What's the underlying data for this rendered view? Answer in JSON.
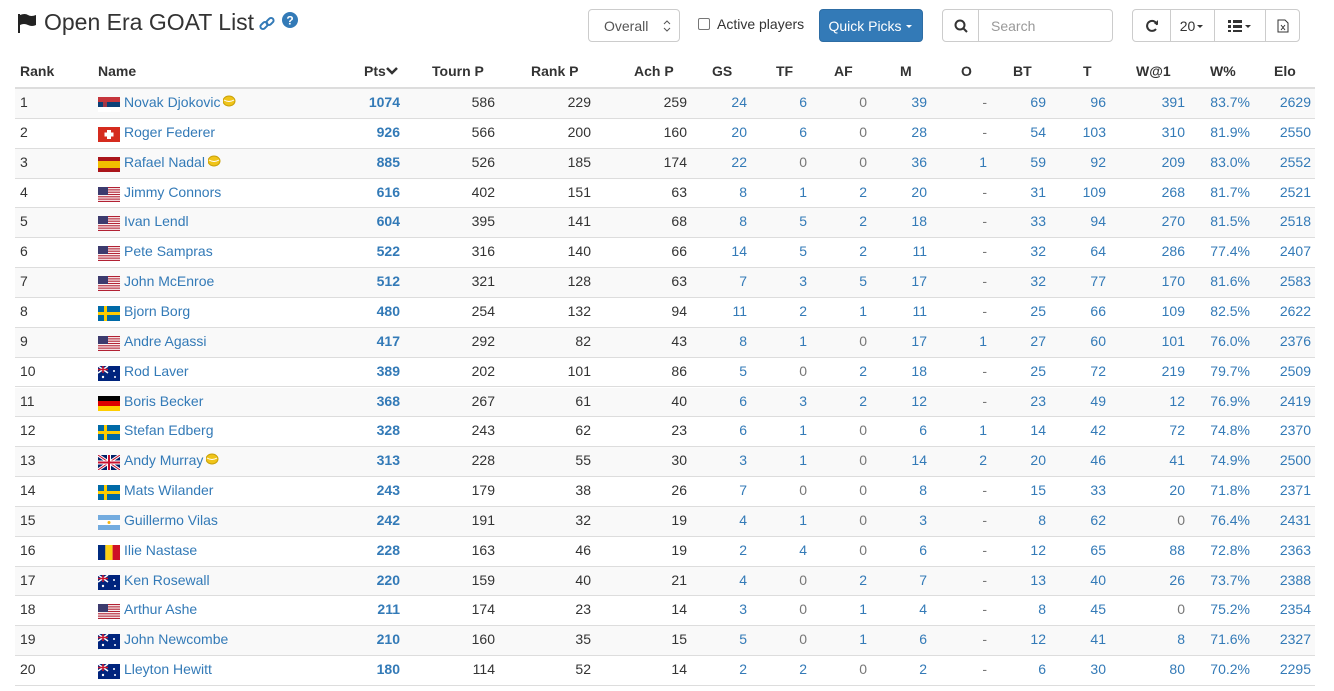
{
  "header": {
    "title": "Open Era GOAT List"
  },
  "toolbar": {
    "view": "Overall",
    "active_label": "Active players",
    "quick_picks": "Quick Picks",
    "search_placeholder": "Search",
    "page_size": "20"
  },
  "table": {
    "columns": [
      "Rank",
      "Name",
      "Pts",
      "Tourn P",
      "Rank P",
      "Ach P",
      "GS",
      "TF",
      "AF",
      "M",
      "O",
      "BT",
      "T",
      "W@1",
      "W%",
      "Elo"
    ],
    "rows": [
      [
        "1",
        "Novak Djokovic",
        "1074",
        "586",
        "229",
        "259",
        "24",
        "6",
        "0",
        "39",
        "-",
        "69",
        "96",
        "391",
        "83.7%",
        "2629"
      ],
      [
        "2",
        "Roger Federer",
        "926",
        "566",
        "200",
        "160",
        "20",
        "6",
        "0",
        "28",
        "-",
        "54",
        "103",
        "310",
        "81.9%",
        "2550"
      ],
      [
        "3",
        "Rafael Nadal",
        "885",
        "526",
        "185",
        "174",
        "22",
        "0",
        "0",
        "36",
        "1",
        "59",
        "92",
        "209",
        "83.0%",
        "2552"
      ],
      [
        "4",
        "Jimmy Connors",
        "616",
        "402",
        "151",
        "63",
        "8",
        "1",
        "2",
        "20",
        "-",
        "31",
        "109",
        "268",
        "81.7%",
        "2521"
      ],
      [
        "5",
        "Ivan Lendl",
        "604",
        "395",
        "141",
        "68",
        "8",
        "5",
        "2",
        "18",
        "-",
        "33",
        "94",
        "270",
        "81.5%",
        "2518"
      ],
      [
        "6",
        "Pete Sampras",
        "522",
        "316",
        "140",
        "66",
        "14",
        "5",
        "2",
        "11",
        "-",
        "32",
        "64",
        "286",
        "77.4%",
        "2407"
      ],
      [
        "7",
        "John McEnroe",
        "512",
        "321",
        "128",
        "63",
        "7",
        "3",
        "5",
        "17",
        "-",
        "32",
        "77",
        "170",
        "81.6%",
        "2583"
      ],
      [
        "8",
        "Bjorn Borg",
        "480",
        "254",
        "132",
        "94",
        "11",
        "2",
        "1",
        "11",
        "-",
        "25",
        "66",
        "109",
        "82.5%",
        "2622"
      ],
      [
        "9",
        "Andre Agassi",
        "417",
        "292",
        "82",
        "43",
        "8",
        "1",
        "0",
        "17",
        "1",
        "27",
        "60",
        "101",
        "76.0%",
        "2376"
      ],
      [
        "10",
        "Rod Laver",
        "389",
        "202",
        "101",
        "86",
        "5",
        "0",
        "2",
        "18",
        "-",
        "25",
        "72",
        "219",
        "79.7%",
        "2509"
      ],
      [
        "11",
        "Boris Becker",
        "368",
        "267",
        "61",
        "40",
        "6",
        "3",
        "2",
        "12",
        "-",
        "23",
        "49",
        "12",
        "76.9%",
        "2419"
      ],
      [
        "12",
        "Stefan Edberg",
        "328",
        "243",
        "62",
        "23",
        "6",
        "1",
        "0",
        "6",
        "1",
        "14",
        "42",
        "72",
        "74.8%",
        "2370"
      ],
      [
        "13",
        "Andy Murray",
        "313",
        "228",
        "55",
        "30",
        "3",
        "1",
        "0",
        "14",
        "2",
        "20",
        "46",
        "41",
        "74.9%",
        "2500"
      ],
      [
        "14",
        "Mats Wilander",
        "243",
        "179",
        "38",
        "26",
        "7",
        "0",
        "0",
        "8",
        "-",
        "15",
        "33",
        "20",
        "71.8%",
        "2371"
      ],
      [
        "15",
        "Guillermo Vilas",
        "242",
        "191",
        "32",
        "19",
        "4",
        "1",
        "0",
        "3",
        "-",
        "8",
        "62",
        "0",
        "76.4%",
        "2431"
      ],
      [
        "16",
        "Ilie Nastase",
        "228",
        "163",
        "46",
        "19",
        "2",
        "4",
        "0",
        "6",
        "-",
        "12",
        "65",
        "88",
        "72.8%",
        "2363"
      ],
      [
        "17",
        "Ken Rosewall",
        "220",
        "159",
        "40",
        "21",
        "4",
        "0",
        "2",
        "7",
        "-",
        "13",
        "40",
        "26",
        "73.7%",
        "2388"
      ],
      [
        "18",
        "Arthur Ashe",
        "211",
        "174",
        "23",
        "14",
        "3",
        "0",
        "1",
        "4",
        "-",
        "8",
        "45",
        "0",
        "75.2%",
        "2354"
      ],
      [
        "19",
        "John Newcombe",
        "210",
        "160",
        "35",
        "15",
        "5",
        "0",
        "1",
        "6",
        "-",
        "12",
        "41",
        "8",
        "71.6%",
        "2327"
      ],
      [
        "20",
        "Lleyton Hewitt",
        "180",
        "114",
        "52",
        "14",
        "2",
        "2",
        "0",
        "2",
        "-",
        "6",
        "30",
        "80",
        "70.2%",
        "2295"
      ]
    ]
  }
}
